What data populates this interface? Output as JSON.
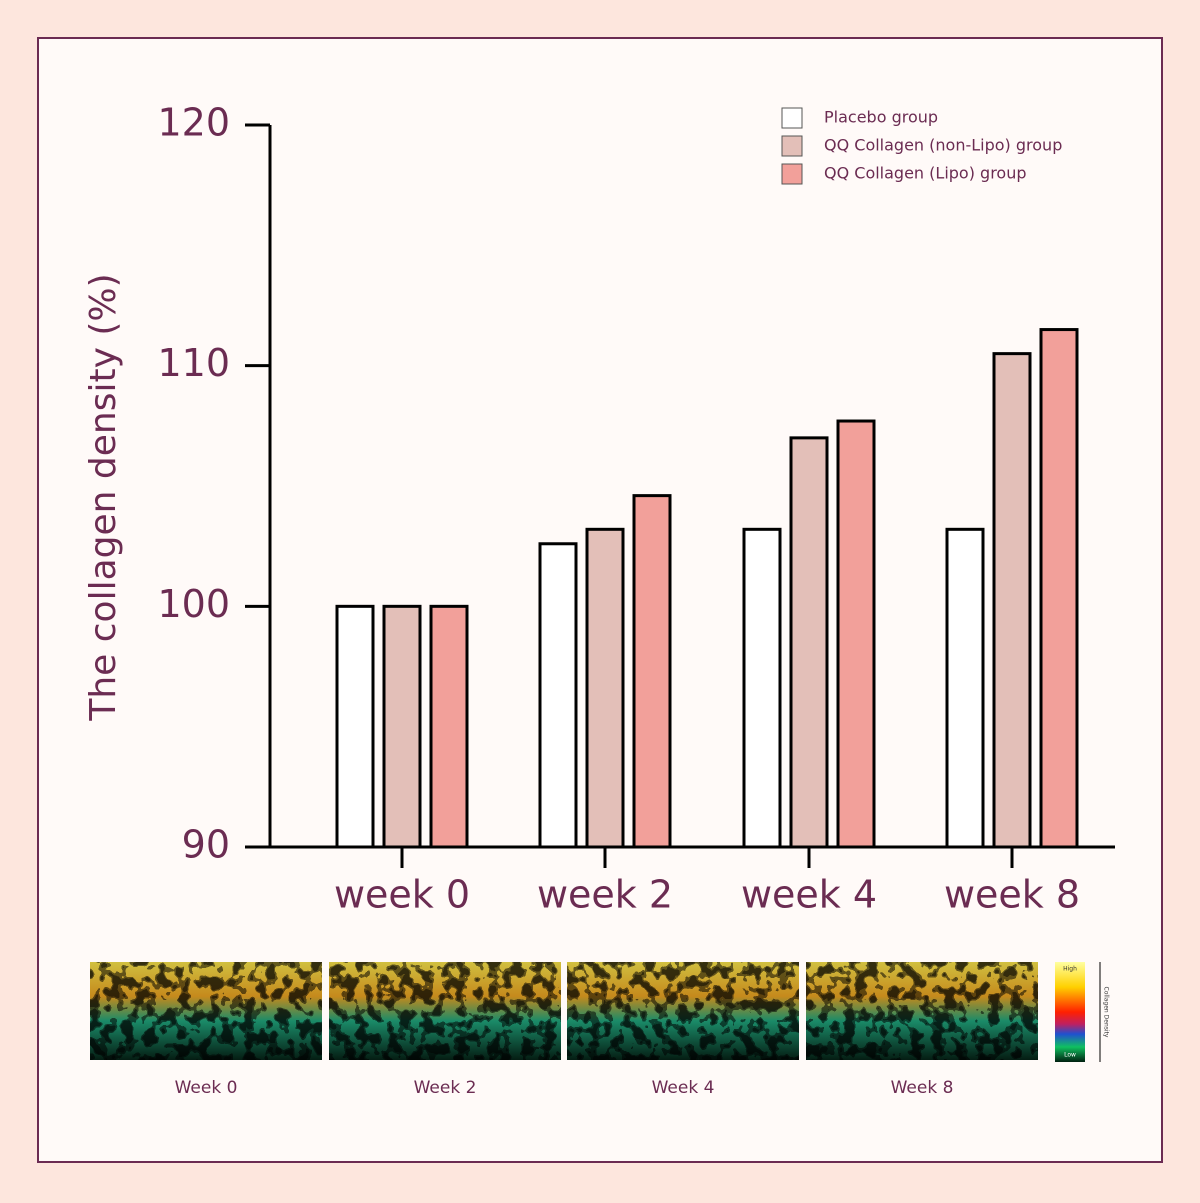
{
  "chart_data": {
    "type": "bar",
    "ylabel": "The collagen density (%)",
    "categories": [
      "week 0",
      "week 2",
      "week 4",
      "week 8"
    ],
    "series": [
      {
        "name": "Placebo group",
        "color": "#ffffff",
        "values": [
          100,
          102.6,
          103.2,
          103.2
        ]
      },
      {
        "name": "QQ Collagen (non-Lipo) group",
        "color": "#e3bfb8",
        "values": [
          100,
          103.2,
          107.0,
          110.5
        ]
      },
      {
        "name": "QQ Collagen (Lipo) group",
        "color": "#f2a09a",
        "values": [
          100,
          104.6,
          107.7,
          111.5
        ]
      }
    ],
    "ylim": [
      90,
      120
    ],
    "yticks": [
      90,
      100,
      110,
      120
    ],
    "grid": false,
    "legend": "top-right"
  },
  "image_strip": {
    "labels": [
      "Week 0",
      "Week 2",
      "Week 4",
      "Week 8"
    ],
    "colorbar": {
      "high": "High",
      "low": "Low",
      "title": "Collagen Density"
    }
  }
}
